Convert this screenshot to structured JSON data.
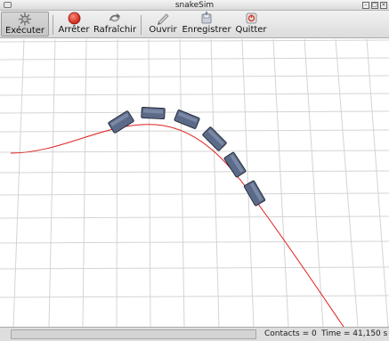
{
  "window": {
    "title": "snakeSim",
    "controls": [
      "minimize-icon",
      "maximize-icon",
      "close-icon"
    ]
  },
  "toolbar": {
    "buttons": [
      {
        "label": "Exécuter",
        "icon": "gear-icon",
        "pressed": true
      },
      {
        "label": "Arrêter",
        "icon": "stop-icon",
        "color": "#e03020"
      },
      {
        "label": "Rafraîchir",
        "icon": "refresh-icon"
      },
      {
        "label": "Ouvrir",
        "icon": "open-icon"
      },
      {
        "label": "Enregistrer",
        "icon": "save-icon"
      },
      {
        "label": "Quitter",
        "icon": "quit-icon",
        "color": "#d04030"
      }
    ]
  },
  "scene": {
    "grid_color": "#d4d4d4",
    "path_color": "#e02020",
    "segment_color": "#5a6a8a",
    "segment_count": 7
  },
  "status": {
    "contacts": "Contacts = 0",
    "time": "Time = 41,150 s"
  }
}
